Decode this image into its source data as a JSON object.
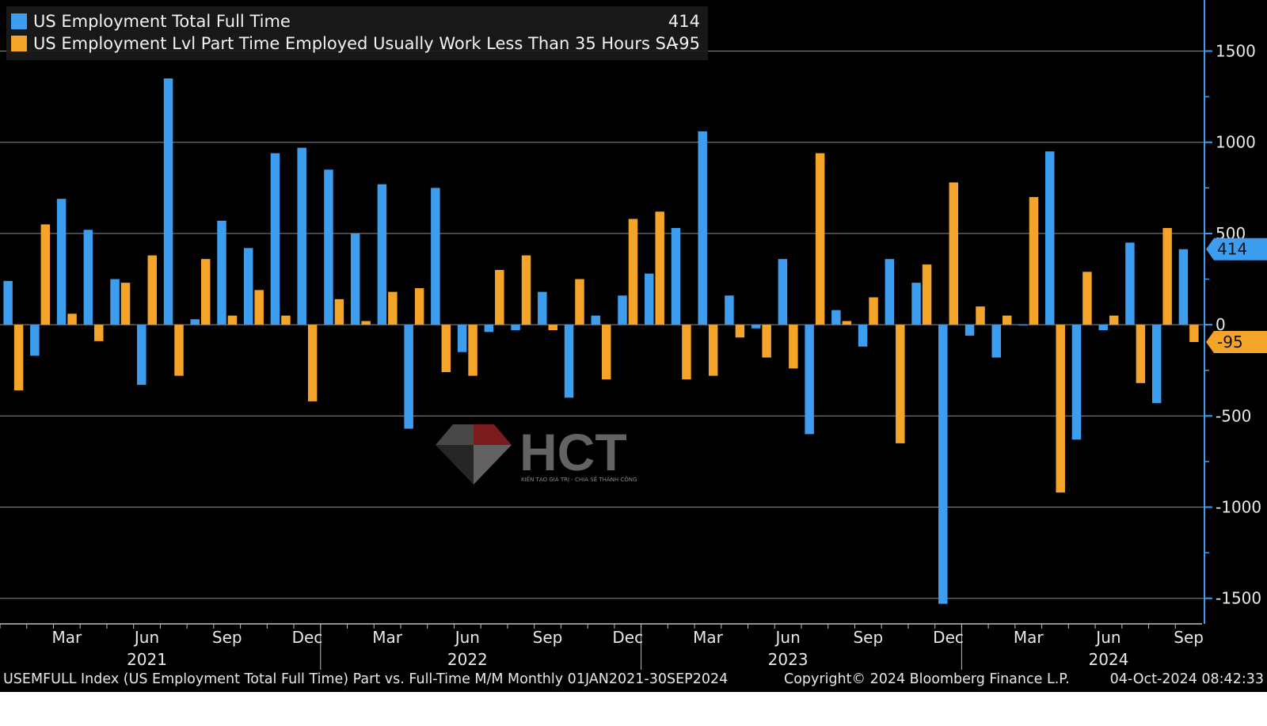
{
  "colors": {
    "full_time": "#3d9ef0",
    "part_time": "#f5a42a",
    "background": "#000000",
    "grid": "#8a8a8a",
    "axis": "#3d9ef0"
  },
  "legend": [
    {
      "name": "US Employment Total Full Time",
      "last": "414",
      "color": "#3d9ef0"
    },
    {
      "name": "US Employment Lvl Part Time Employed Usually Work Less Than 35 Hours SA",
      "last": "-95",
      "color": "#f5a42a"
    }
  ],
  "last_value_tags": [
    {
      "text": "414",
      "value": 414,
      "color": "#3d9ef0"
    },
    {
      "text": "-95",
      "value": -95,
      "color": "#f5a42a"
    }
  ],
  "footer": {
    "left": "USEMFULL Index (US Employment Total Full Time) Part vs. Full-Time M/M  Monthly 01JAN2021-30SEP2024",
    "center": "Copyright© 2024 Bloomberg Finance L.P.",
    "right": "04-Oct-2024 08:42:33"
  },
  "watermark": {
    "brand": "HCT",
    "tagline": "KIẾN TẠO GIÁ TRỊ - CHIA SẺ THÀNH CÔNG"
  },
  "chart_data": {
    "type": "bar",
    "months": [
      "Jan 2021",
      "Feb 2021",
      "Mar 2021",
      "Apr 2021",
      "May 2021",
      "Jun 2021",
      "Jul 2021",
      "Aug 2021",
      "Sep 2021",
      "Oct 2021",
      "Nov 2021",
      "Dec 2021",
      "Jan 2022",
      "Feb 2022",
      "Mar 2022",
      "Apr 2022",
      "May 2022",
      "Jun 2022",
      "Jul 2022",
      "Aug 2022",
      "Sep 2022",
      "Oct 2022",
      "Nov 2022",
      "Dec 2022",
      "Jan 2023",
      "Feb 2023",
      "Mar 2023",
      "Apr 2023",
      "May 2023",
      "Jun 2023",
      "Jul 2023",
      "Aug 2023",
      "Sep 2023",
      "Oct 2023",
      "Nov 2023",
      "Dec 2023",
      "Jan 2024",
      "Feb 2024",
      "Mar 2024",
      "Apr 2024",
      "May 2024",
      "Jun 2024",
      "Jul 2024",
      "Aug 2024",
      "Sep 2024"
    ],
    "series": [
      {
        "name": "US Employment Total Full Time",
        "color": "#3d9ef0",
        "values": [
          240,
          -170,
          690,
          520,
          250,
          -330,
          1350,
          30,
          570,
          420,
          940,
          970,
          850,
          500,
          770,
          -570,
          750,
          -150,
          -40,
          -30,
          180,
          -400,
          50,
          160,
          280,
          530,
          1060,
          160,
          -20,
          360,
          -600,
          80,
          -120,
          360,
          230,
          -1530,
          -60,
          -180,
          0,
          950,
          -630,
          -30,
          450,
          -430,
          414
        ]
      },
      {
        "name": "US Employment Lvl Part Time Employed Usually Work Less Than 35 Hours SA",
        "color": "#f5a42a",
        "values": [
          -360,
          550,
          60,
          -90,
          230,
          380,
          -280,
          360,
          50,
          190,
          50,
          -420,
          140,
          20,
          180,
          200,
          -260,
          -280,
          300,
          380,
          -30,
          250,
          -300,
          580,
          620,
          -300,
          -280,
          -70,
          -180,
          -240,
          940,
          20,
          150,
          -650,
          330,
          780,
          100,
          50,
          700,
          -920,
          290,
          50,
          -320,
          530,
          -95
        ]
      }
    ],
    "x_tick_labels": [
      {
        "label": "Mar",
        "month_index": 2
      },
      {
        "label": "Jun",
        "month_index": 5
      },
      {
        "label": "Sep",
        "month_index": 8
      },
      {
        "label": "Dec",
        "month_index": 11
      },
      {
        "label": "Mar",
        "month_index": 14
      },
      {
        "label": "Jun",
        "month_index": 17
      },
      {
        "label": "Sep",
        "month_index": 20
      },
      {
        "label": "Dec",
        "month_index": 23
      },
      {
        "label": "Mar",
        "month_index": 26
      },
      {
        "label": "Jun",
        "month_index": 29
      },
      {
        "label": "Sep",
        "month_index": 32
      },
      {
        "label": "Dec",
        "month_index": 35
      },
      {
        "label": "Mar",
        "month_index": 38
      },
      {
        "label": "Jun",
        "month_index": 41
      },
      {
        "label": "Sep",
        "month_index": 44
      }
    ],
    "year_labels": [
      {
        "label": "2021",
        "month_index": 5
      },
      {
        "label": "2022",
        "month_index": 17
      },
      {
        "label": "2023",
        "month_index": 29
      },
      {
        "label": "2024",
        "month_index": 41
      }
    ],
    "y_ticks": [
      1500,
      1000,
      500,
      0,
      -500,
      -1000,
      -1500
    ],
    "y_tick_labels": [
      "1500",
      "1000",
      "500",
      "0",
      "-500",
      "-1000",
      "-1500"
    ],
    "ylim": [
      -1640,
      1780
    ],
    "grid": true,
    "axis_side": "right",
    "legend_position": "top-left"
  }
}
